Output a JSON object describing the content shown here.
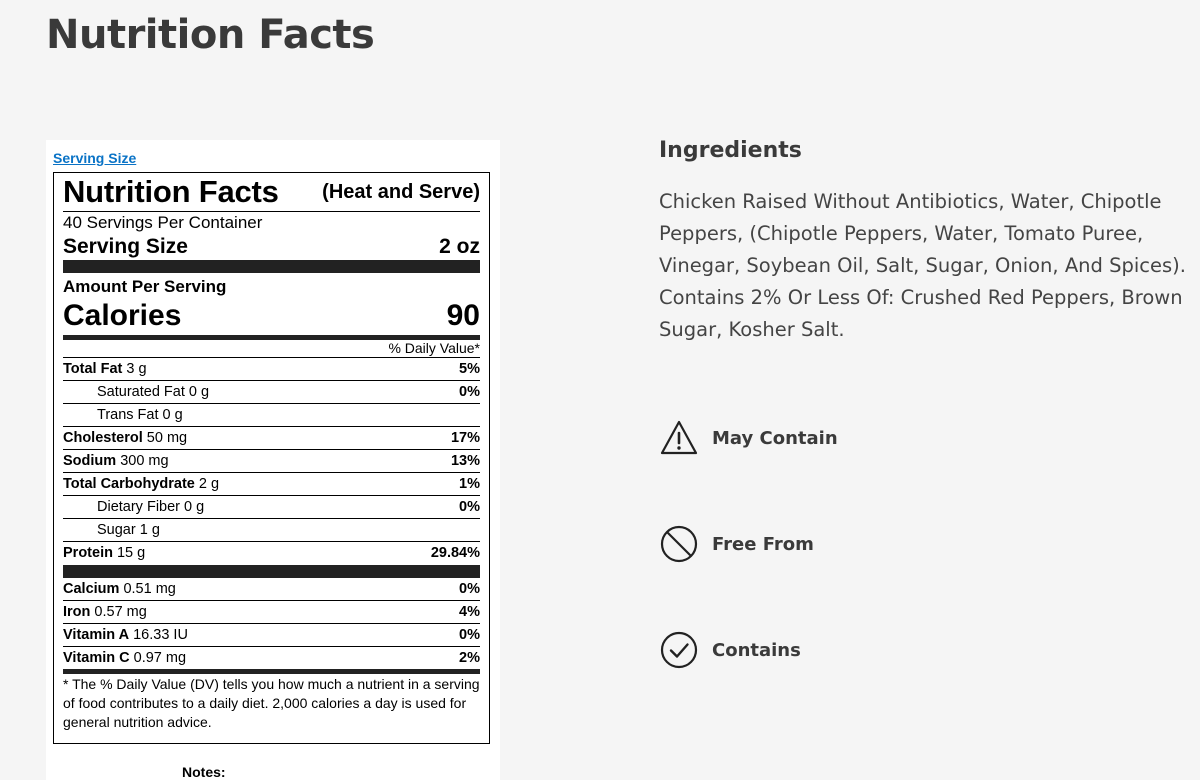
{
  "page": {
    "title": "Nutrition Facts"
  },
  "nutrition_label": {
    "serving_size_link": "Serving Size",
    "title": "Nutrition Facts",
    "subtitle": "(Heat and Serve)",
    "servings_per_container": "40 Servings Per Container",
    "serving_size_label": "Serving Size",
    "serving_size_value": "2 oz",
    "amount_per_serving": "Amount Per Serving",
    "calories_label": "Calories",
    "calories_value": "90",
    "daily_value_header": "% Daily Value*",
    "nutrients": [
      {
        "name": "Total Fat",
        "amount": "3 g",
        "dv": "5%"
      },
      {
        "name": "Saturated Fat",
        "amount": "0 g",
        "dv": "0%"
      },
      {
        "name": "Trans Fat",
        "amount": "0 g",
        "dv": ""
      },
      {
        "name": "Cholesterol",
        "amount": "50 mg",
        "dv": "17%"
      },
      {
        "name": "Sodium",
        "amount": "300 mg",
        "dv": "13%"
      },
      {
        "name": "Total Carbohydrate",
        "amount": "2 g",
        "dv": "1%"
      },
      {
        "name": "Dietary Fiber",
        "amount": "0 g",
        "dv": "0%"
      },
      {
        "name": "Sugar",
        "amount": "1 g",
        "dv": ""
      },
      {
        "name": "Protein",
        "amount": "15 g",
        "dv": "29.84%"
      }
    ],
    "vitamins": [
      {
        "name": "Calcium",
        "amount": "0.51 mg",
        "dv": "0%"
      },
      {
        "name": "Iron",
        "amount": "0.57 mg",
        "dv": "4%"
      },
      {
        "name": "Vitamin A",
        "amount": "16.33 IU",
        "dv": "0%"
      },
      {
        "name": "Vitamin C",
        "amount": "0.97 mg",
        "dv": "2%"
      }
    ],
    "footnote": "* The % Daily Value (DV) tells you how much a nutrient in a serving of food contributes to a daily diet. 2,000 calories a day is used for general nutrition advice.",
    "notes_label": "Notes:"
  },
  "ingredients": {
    "title": "Ingredients",
    "text": "Chicken Raised Without Antibiotics, Water, Chipotle Peppers, (Chipotle Peppers, Water, Tomato Puree, Vinegar, Soybean Oil, Salt, Sugar, Onion, And Spices). Contains 2% Or Less Of: Crushed Red Peppers, Brown Sugar, Kosher Salt."
  },
  "allergens": {
    "may_contain": {
      "label": "May Contain",
      "icon": "warning-triangle-icon"
    },
    "free_from": {
      "label": "Free From",
      "icon": "prohibited-circle-icon"
    },
    "contains": {
      "label": "Contains",
      "icon": "check-circle-icon"
    }
  },
  "colors": {
    "background": "#f5f5f5",
    "link": "#0a73c6",
    "heading": "#3a3a3a",
    "body_text": "#444444"
  }
}
